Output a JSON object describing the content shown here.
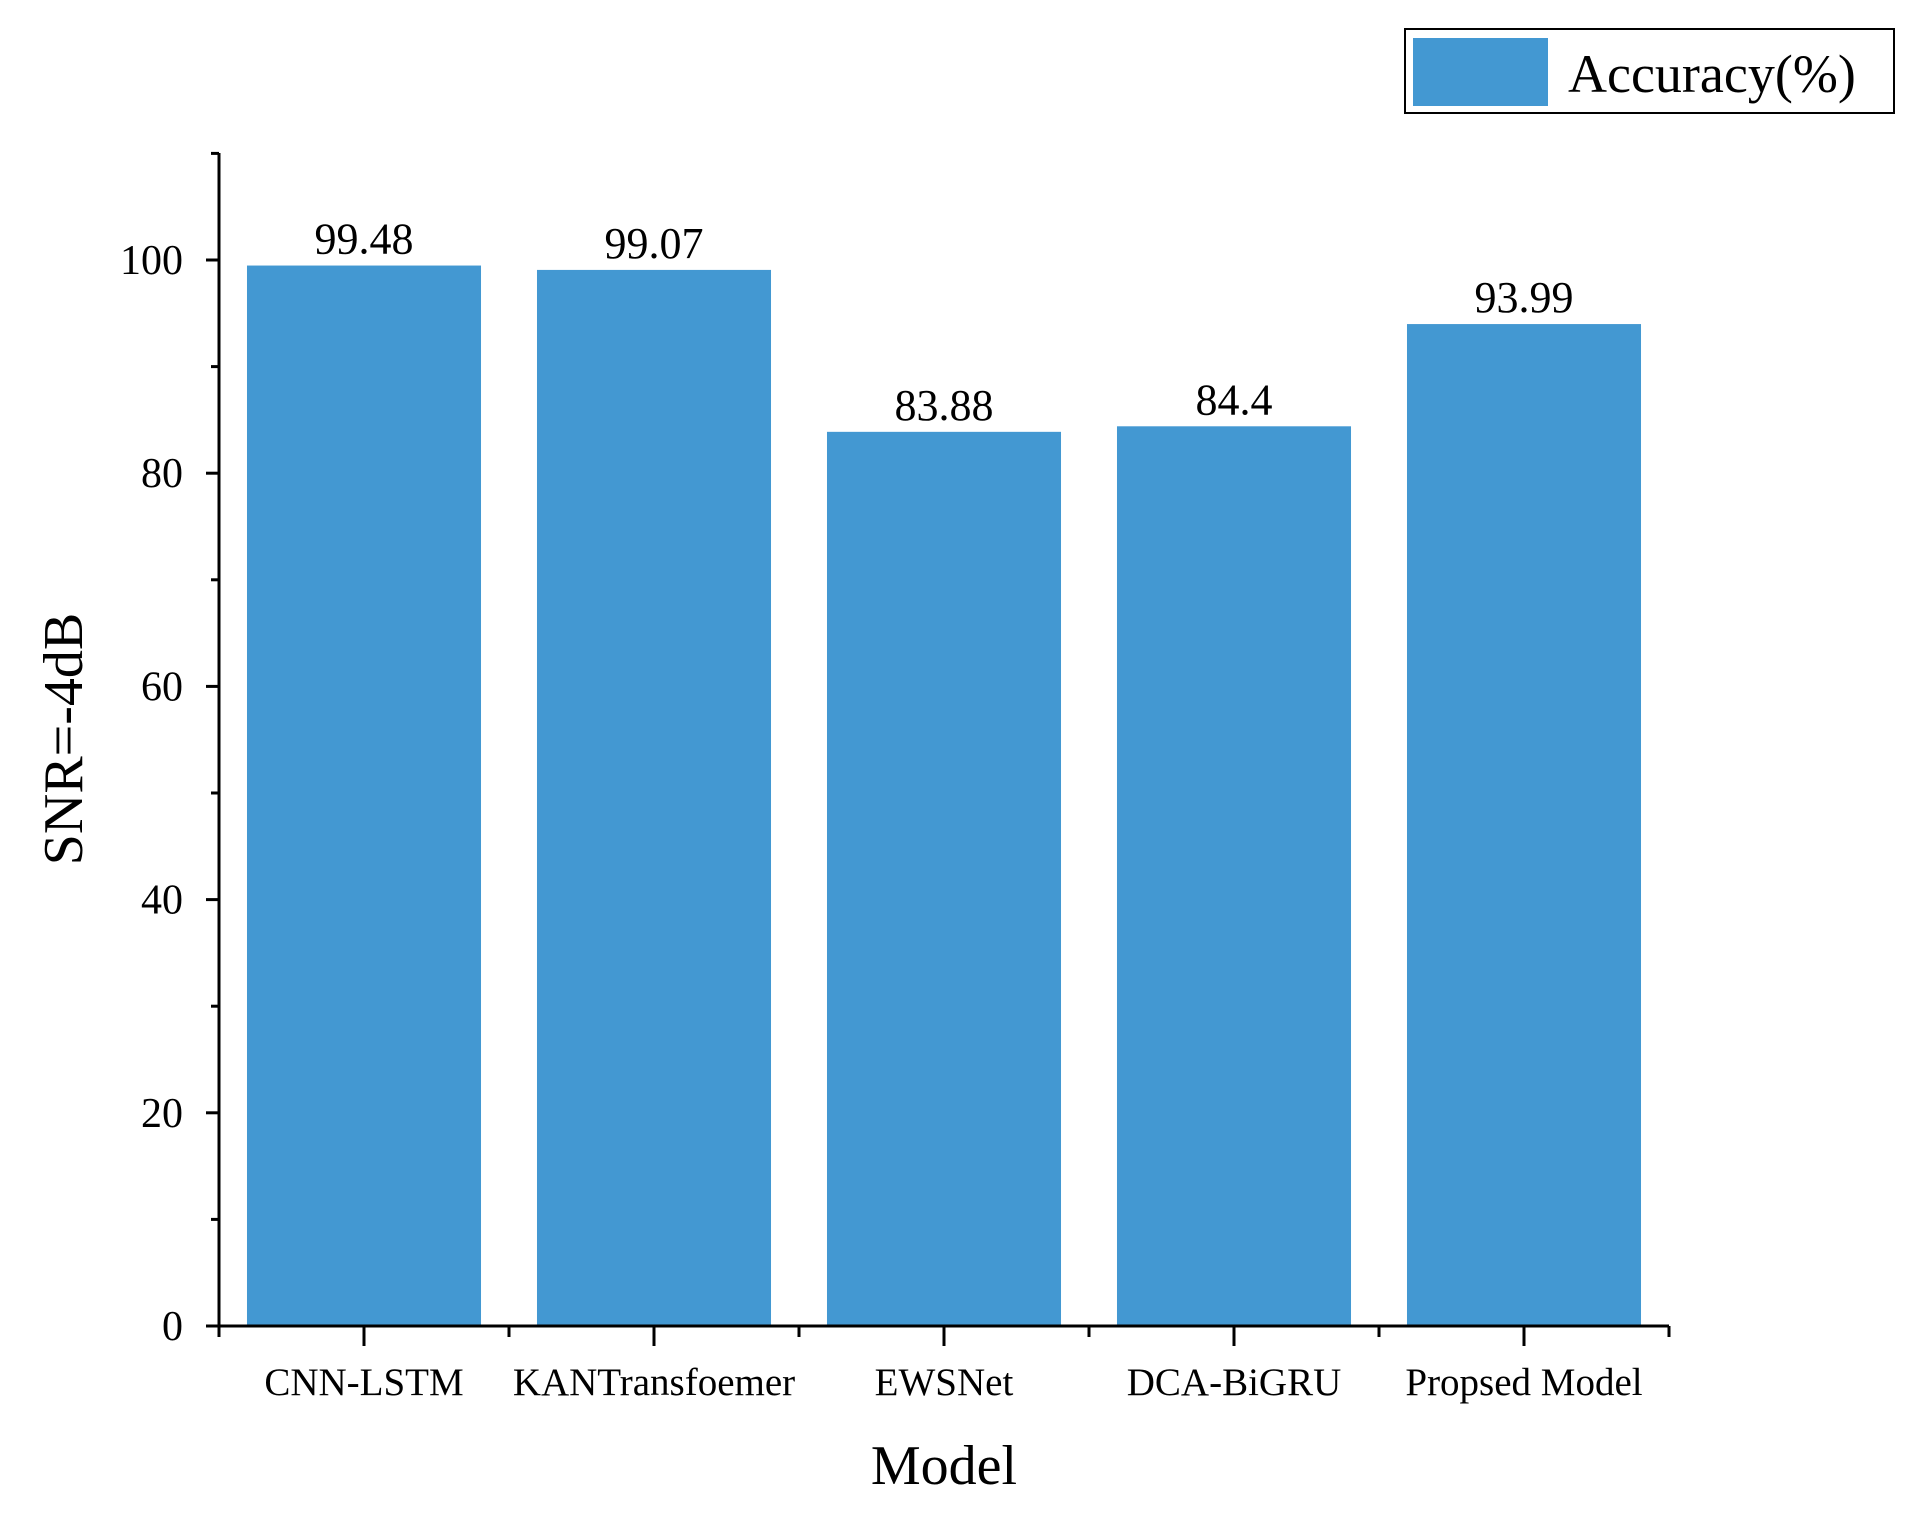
{
  "chart_data": {
    "type": "bar",
    "title": "",
    "xlabel": "Model",
    "ylabel": "SNR=-4dB",
    "categories": [
      "CNN-LSTM",
      "KANTransfoemer",
      "EWSNet",
      "DCA-BiGRU",
      "Propsed Model"
    ],
    "series": [
      {
        "name": "Accuracy(%)",
        "values": [
          99.48,
          99.07,
          83.88,
          84.4,
          93.99
        ],
        "labels": [
          "99.48",
          "99.07",
          "83.88",
          "84.4",
          "93.99"
        ],
        "color": "#4398d2"
      }
    ],
    "ylim": [
      0,
      110
    ],
    "yticks": [
      0,
      20,
      40,
      60,
      80,
      100
    ],
    "grid": false,
    "legend": "top-right"
  }
}
